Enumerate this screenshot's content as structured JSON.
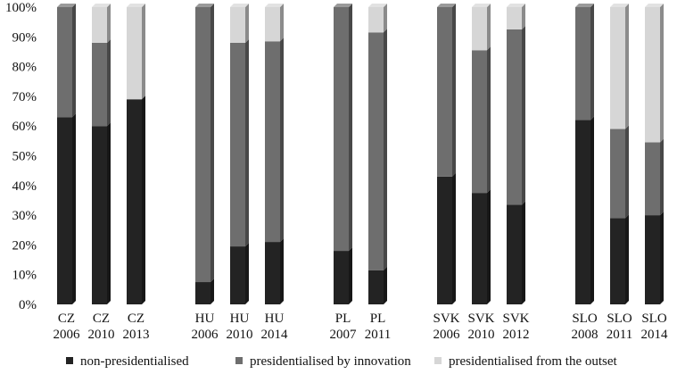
{
  "chart_data": {
    "type": "bar",
    "stacked": true,
    "style": "3d",
    "ylim": [
      0,
      100
    ],
    "y_ticks": [
      "0%",
      "10%",
      "20%",
      "30%",
      "40%",
      "50%",
      "60%",
      "70%",
      "80%",
      "90%",
      "100%"
    ],
    "grid": false,
    "legend_position": "bottom",
    "categories": [
      {
        "line1": "CZ",
        "line2": "2006",
        "group": 0
      },
      {
        "line1": "CZ",
        "line2": "2010",
        "group": 0
      },
      {
        "line1": "CZ",
        "line2": "2013",
        "group": 0
      },
      {
        "line1": "HU",
        "line2": "2006",
        "group": 1
      },
      {
        "line1": "HU",
        "line2": "2010",
        "group": 1
      },
      {
        "line1": "HU",
        "line2": "2014",
        "group": 1
      },
      {
        "line1": "PL",
        "line2": "2007",
        "group": 2
      },
      {
        "line1": "PL",
        "line2": "2011",
        "group": 2
      },
      {
        "line1": "SVK",
        "line2": "2006",
        "group": 3
      },
      {
        "line1": "SVK",
        "line2": "2010",
        "group": 3
      },
      {
        "line1": "SVK",
        "line2": "2012",
        "group": 3
      },
      {
        "line1": "SLO",
        "line2": "2008",
        "group": 4
      },
      {
        "line1": "SLO",
        "line2": "2011",
        "group": 4
      },
      {
        "line1": "SLO",
        "line2": "2014",
        "group": 4
      }
    ],
    "series": [
      {
        "name": "non-presidentialised",
        "color": "#232323",
        "values": [
          63,
          60,
          69,
          7.5,
          19.5,
          21,
          18,
          11.5,
          43,
          37.5,
          33.5,
          62,
          29,
          30
        ]
      },
      {
        "name": "presidentialised by innovation",
        "color": "#6e6e6e",
        "values": [
          37,
          28,
          0,
          92.5,
          68.5,
          67.5,
          82,
          80,
          57,
          48,
          59,
          38,
          30,
          24.5
        ]
      },
      {
        "name": "presidentialised from the outset",
        "color": "#d6d6d6",
        "values": [
          0,
          12,
          31,
          0,
          12,
          11.5,
          0,
          8.5,
          0,
          14.5,
          7.5,
          0,
          41,
          45.5
        ]
      }
    ]
  }
}
